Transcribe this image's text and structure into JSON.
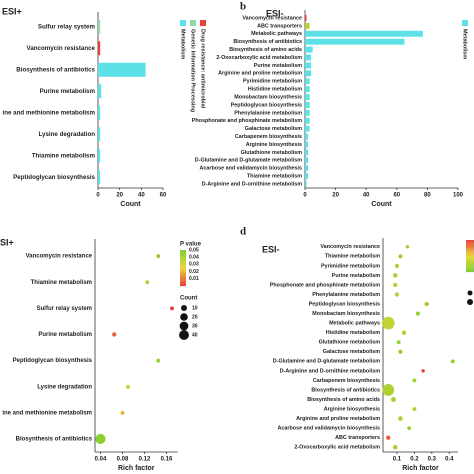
{
  "chart_data": [
    {
      "type": "bar",
      "title": "ESI+",
      "categories": [
        "Sulfur relay system",
        "Vancomycin resistance",
        "Biosynthesis of antibiotics",
        "Purine metabolism",
        "ine and methionine metabolism",
        "Lysine degradation",
        "Thiamine metabolism",
        "Peptidoglycan biosynthesis"
      ],
      "values": [
        2,
        2,
        44,
        3,
        2,
        2,
        2,
        2
      ],
      "colors": [
        "#8fd9a8",
        "#e8423a",
        "#5ce1e6",
        "#5ce1e6",
        "#5ce1e6",
        "#5ce1e6",
        "#5ce1e6",
        "#5ce1e6"
      ],
      "xlim": [
        0,
        60
      ],
      "xticks": [
        0,
        20,
        40,
        60
      ],
      "x_label": "Count",
      "legend": [
        {
          "name": "Metabolism",
          "color": "#5ce1e6"
        },
        {
          "name": "Genetic Information Processing",
          "color": "#8fd9a8"
        },
        {
          "name": "Drug resistance: antimicrobial",
          "color": "#e8423a"
        }
      ]
    },
    {
      "type": "bar",
      "panel": "b",
      "title": "ESI-",
      "categories": [
        "Vancomycin resistance",
        "ABC transporters",
        "Metabolic pathways",
        "Biosynthesis of antibiotics",
        "Biosynthesis of amino acids",
        "2-Oxocarboxylic acid metabolism",
        "Purine metabolism",
        "Arginine and proline metabolism",
        "Pyrimidine metabolism",
        "Histidine metabolism",
        "Monobactam biosynthesis",
        "Peptidoglycan biosynthesis",
        "Phenylalanine metabolism",
        "Phosphonate and phosphinate metabolism",
        "Galactose metabolism",
        "Carbapenem biosynthesis",
        "Arginine biosynthesis",
        "Glutathione metabolism",
        "D-Glutamine and D-glutamate metabolism",
        "Acarbose and validamycin biosynthesis",
        "Thiamine metabolism",
        "D-Arginine and D-ornithine metabolism"
      ],
      "values": [
        1,
        3,
        77,
        65,
        5,
        4,
        4,
        4,
        3,
        3,
        3,
        3,
        3,
        3,
        3,
        2,
        2,
        2,
        2,
        2,
        2,
        1
      ],
      "colors": [
        "#e8423a",
        "#b5d334",
        "#5ce1e6",
        "#5ce1e6",
        "#5ce1e6",
        "#5ce1e6",
        "#5ce1e6",
        "#5ce1e6",
        "#5ce1e6",
        "#5ce1e6",
        "#5ce1e6",
        "#5ce1e6",
        "#5ce1e6",
        "#5ce1e6",
        "#5ce1e6",
        "#5ce1e6",
        "#5ce1e6",
        "#5ce1e6",
        "#5ce1e6",
        "#5ce1e6",
        "#5ce1e6",
        "#5ce1e6"
      ],
      "xlim": [
        0,
        100
      ],
      "xticks": [
        0,
        20,
        40,
        60,
        80,
        100
      ],
      "x_label": "Count",
      "legend": [
        {
          "name": "Metabolism",
          "color": "#5ce1e6"
        }
      ]
    },
    {
      "type": "scatter",
      "title": "SI+",
      "categories": [
        "Vancomycin resistance",
        "Thiamine metabolism",
        "Sulfur relay system",
        "Purine metabolism",
        "Peptidoglycan biosynthesis",
        "Lysine degradation",
        "ine and methionine metabolism",
        "Biosynthesis of antibiotics"
      ],
      "values": [
        0.145,
        0.125,
        0.17,
        0.065,
        0.145,
        0.09,
        0.08,
        0.04
      ],
      "counts": [
        2,
        2,
        2,
        3,
        2,
        2,
        2,
        44
      ],
      "pvalues": [
        0.045,
        0.04,
        0.0,
        0.005,
        0.045,
        0.035,
        0.02,
        0.048
      ],
      "xlim": [
        0.03,
        0.18
      ],
      "xticks": [
        0.04,
        0.08,
        0.12,
        0.16
      ],
      "x_label": "Rich factor",
      "color_title": "P value",
      "color_lim": [
        0,
        0.05
      ],
      "color_ticks": [
        0.05,
        0.04,
        0.03,
        0.02,
        0.01
      ],
      "size_title": "Count",
      "size_ticks": [
        10,
        20,
        30,
        40
      ]
    },
    {
      "type": "scatter",
      "panel": "d",
      "title": "ESI-",
      "categories": [
        "Vancomycin resistance",
        "Thiamine metabolism",
        "Pyrimidine metabolism",
        "Purine metabolism",
        "Phosphonate and phosphinate metabolism",
        "Phenylalanine metabolism",
        "Peptidoglycan biosynthesis",
        "Monobactam biosynthesis",
        "Metabolic pathways",
        "Histidine metabolism",
        "Glutathione metabolism",
        "Galactose metabolism",
        "D-Glutamine and D-glutamate metabolism",
        "D-Arginine and D-ornithine metabolism",
        "Carbapenem biosynthesis",
        "Biosynthesis of antibiotics",
        "Biosynthesis of amino acids",
        "Arginine biosynthesis",
        "Arginine and proline metabolism",
        "Acarbose and validamycin biosynthesis",
        "ABC transporters",
        "2-Oxocarboxylic acid metabolism"
      ],
      "values": [
        0.16,
        0.12,
        0.1,
        0.09,
        0.09,
        0.1,
        0.27,
        0.22,
        0.05,
        0.14,
        0.11,
        0.12,
        0.42,
        0.25,
        0.2,
        0.05,
        0.08,
        0.2,
        0.12,
        0.17,
        0.05,
        0.09
      ],
      "counts": [
        1,
        2,
        3,
        4,
        3,
        3,
        3,
        3,
        77,
        3,
        2,
        3,
        2,
        1,
        2,
        65,
        5,
        2,
        4,
        2,
        3,
        4
      ],
      "pvalues": [
        0.045,
        0.045,
        0.04,
        0.04,
        0.04,
        0.04,
        0.045,
        0.045,
        0.035,
        0.04,
        0.045,
        0.045,
        0.045,
        0.0,
        0.045,
        0.04,
        0.04,
        0.04,
        0.04,
        0.045,
        0.005,
        0.04
      ],
      "xlim": [
        0.02,
        0.45
      ],
      "xticks": [
        0.1,
        0.2,
        0.3,
        0.4
      ],
      "x_label": "Rich factor",
      "color_lim": [
        0,
        0.05
      ]
    }
  ]
}
